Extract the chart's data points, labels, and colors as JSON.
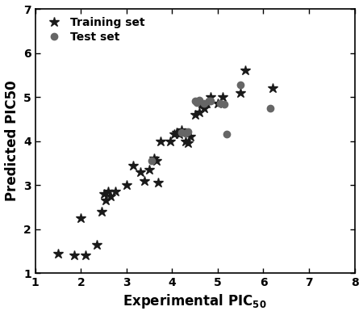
{
  "training_x": [
    1.5,
    1.85,
    2.0,
    2.1,
    2.35,
    2.45,
    2.5,
    2.55,
    2.6,
    2.65,
    2.75,
    3.0,
    3.15,
    3.3,
    3.4,
    3.5,
    3.6,
    3.65,
    3.7,
    3.75,
    3.95,
    4.05,
    4.1,
    4.15,
    4.2,
    4.3,
    4.35,
    4.4,
    4.5,
    4.6,
    4.65,
    4.7,
    4.75,
    4.85,
    5.0,
    5.1,
    5.5,
    5.6,
    6.2
  ],
  "training_y": [
    1.45,
    1.4,
    2.25,
    1.4,
    1.65,
    2.4,
    2.8,
    2.65,
    2.85,
    2.75,
    2.85,
    3.0,
    3.45,
    3.3,
    3.1,
    3.35,
    3.6,
    3.55,
    3.05,
    4.0,
    4.0,
    4.15,
    4.2,
    4.15,
    4.25,
    4.0,
    3.95,
    4.1,
    4.6,
    4.65,
    4.85,
    4.75,
    4.85,
    5.0,
    4.85,
    5.0,
    5.1,
    5.6,
    5.2
  ],
  "test_x": [
    3.55,
    4.2,
    4.3,
    4.35,
    4.5,
    4.55,
    4.6,
    4.7,
    4.8,
    4.85,
    5.05,
    5.15,
    5.2,
    5.5,
    6.15
  ],
  "test_y": [
    3.55,
    4.2,
    4.18,
    4.22,
    4.9,
    4.88,
    4.92,
    4.85,
    4.9,
    4.9,
    4.85,
    4.83,
    4.15,
    5.28,
    4.75
  ],
  "xlim": [
    1,
    8
  ],
  "ylim": [
    1,
    7
  ],
  "xticks": [
    1,
    2,
    3,
    4,
    5,
    6,
    7,
    8
  ],
  "yticks": [
    1,
    2,
    3,
    4,
    5,
    6,
    7
  ],
  "xlabel": "Experimental PIC",
  "xlabel_sub": "50",
  "ylabel": "Predicted PIC50",
  "training_color": "#1a1a1a",
  "test_color": "#666666",
  "training_marker": "*",
  "test_marker": "o",
  "training_markersize": 9,
  "test_markersize": 6,
  "legend_fontsize": 10,
  "axis_label_fontsize": 12,
  "tick_fontsize": 10,
  "figwidth": 4.5,
  "figheight": 3.9
}
